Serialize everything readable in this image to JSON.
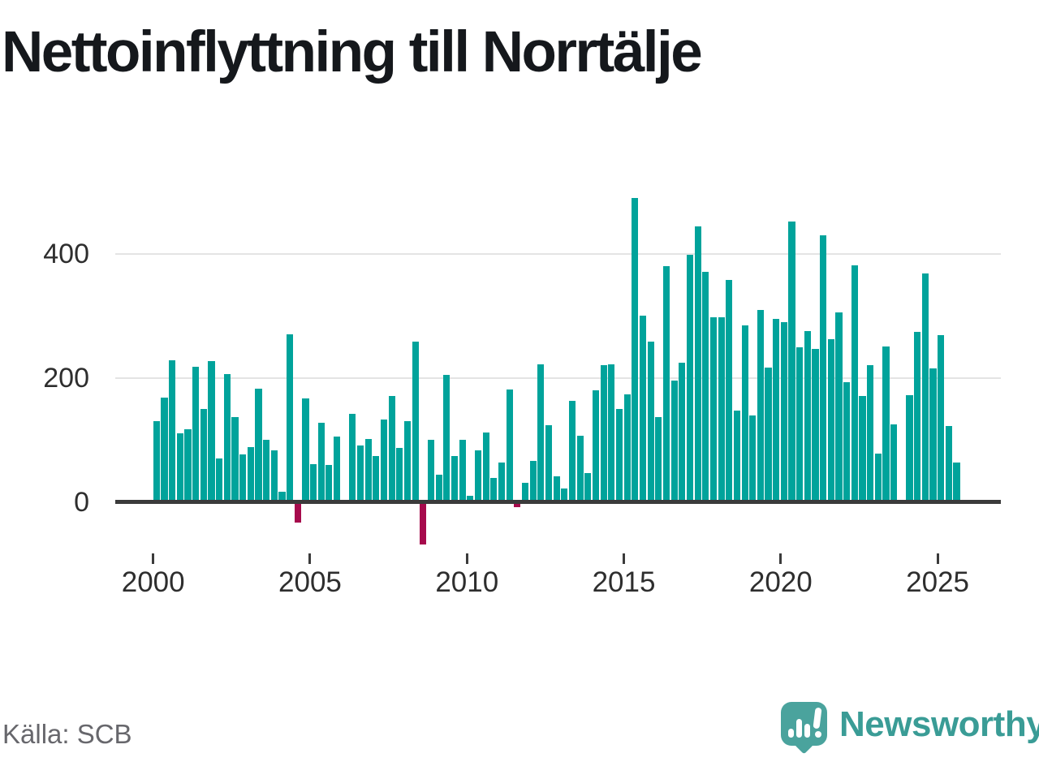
{
  "title": "Nettoinflyttning till Norrtälje",
  "source": "Källa: SCB",
  "branding": {
    "wordmark": "Newsworthy",
    "logo_icon": "speech-bubble-with-bar-chart-and-exclamation"
  },
  "colors": {
    "positive_bar": "#00a39b",
    "negative_bar": "#a60a4c",
    "gridline": "#e4e4e4",
    "axis": "#3b3b3b",
    "tick_text": "#2e2e2e",
    "muted_text": "#67676c",
    "brand_teal": "#4aa39d",
    "brand_text": "#3a9c96"
  },
  "chart_data": {
    "type": "bar",
    "title": "Nettoinflyttning till Norrtälje",
    "x_unit": "quarter",
    "start_quarter": "2000Q1",
    "end_quarter": "2025Q3",
    "x_tick_labels": [
      "2000",
      "2005",
      "2010",
      "2015",
      "2020",
      "2025"
    ],
    "x_tick_years": [
      2000,
      2005,
      2010,
      2015,
      2020,
      2025
    ],
    "y_ticks": [
      0,
      200,
      400
    ],
    "ylim": [
      -80,
      510
    ],
    "grid": "horizontal",
    "legend": "none",
    "values": [
      131,
      168,
      228,
      111,
      118,
      218,
      150,
      227,
      70,
      206,
      137,
      77,
      89,
      183,
      101,
      84,
      17,
      270,
      -31,
      167,
      61,
      128,
      60,
      106,
      0,
      142,
      91,
      102,
      75,
      133,
      171,
      88,
      131,
      258,
      -67,
      100,
      44,
      205,
      75,
      101,
      10,
      84,
      112,
      39,
      64,
      182,
      -6,
      31,
      67,
      222,
      124,
      42,
      22,
      163,
      107,
      47,
      180,
      220,
      222,
      150,
      174,
      489,
      300,
      258,
      137,
      380,
      196,
      224,
      398,
      444,
      371,
      297,
      297,
      358,
      148,
      284,
      140,
      309,
      217,
      295,
      290,
      452,
      249,
      275,
      247,
      430,
      263,
      305,
      193,
      381,
      171,
      220,
      78,
      251,
      125,
      0,
      172,
      274,
      368,
      215,
      269,
      123,
      64
    ]
  }
}
